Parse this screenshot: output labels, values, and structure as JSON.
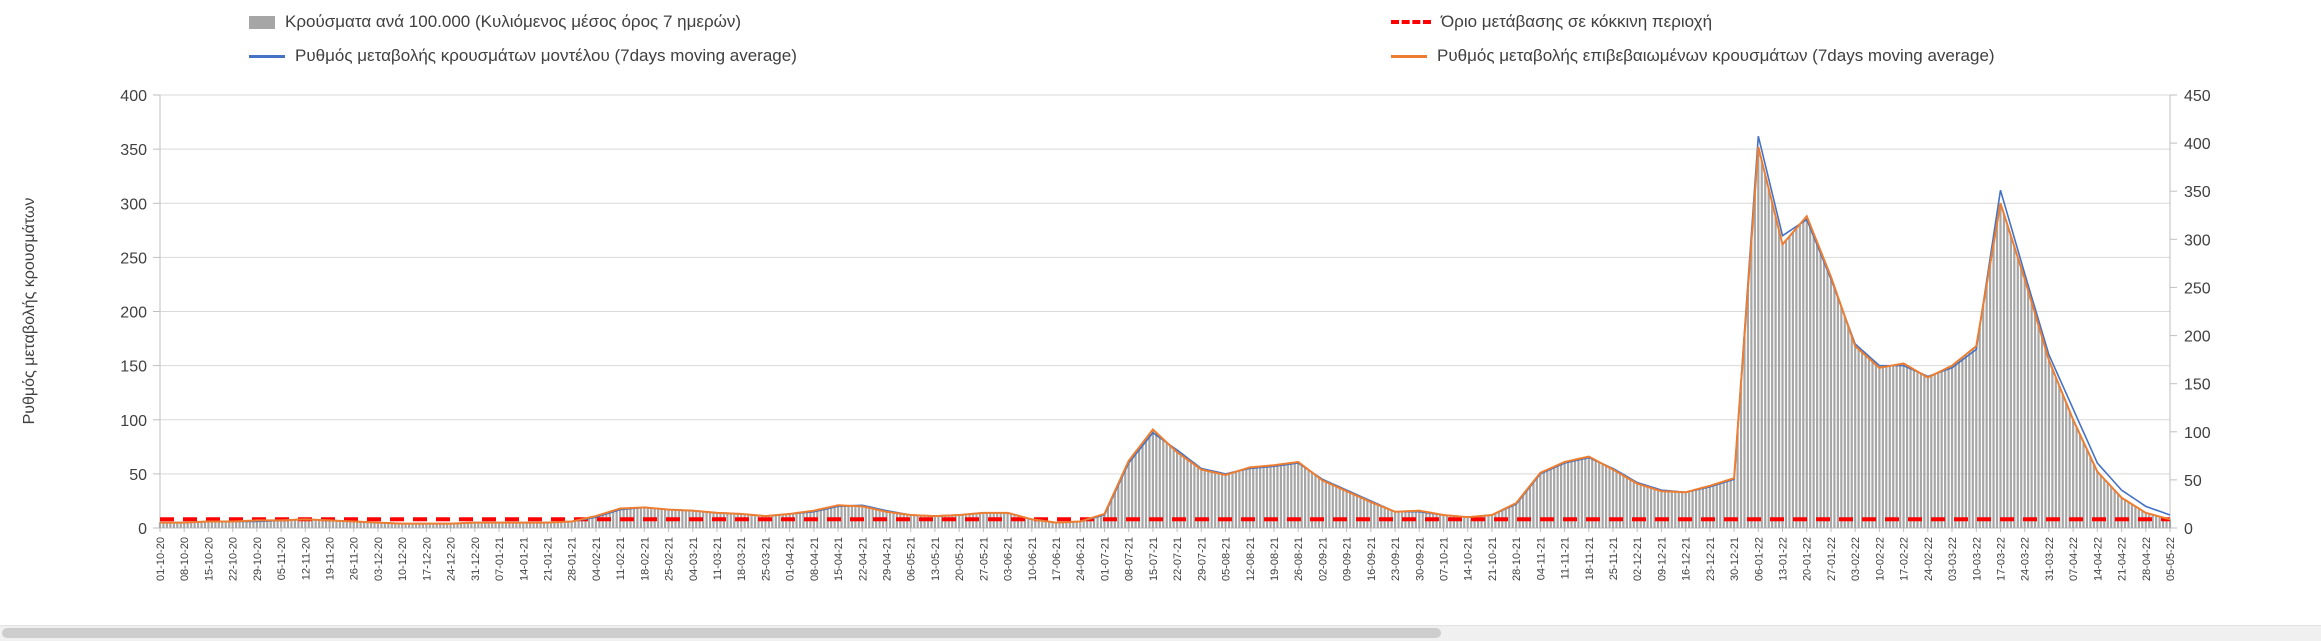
{
  "chart_data": {
    "type": "combo",
    "title": "",
    "x": [
      "01-10-20",
      "08-10-20",
      "15-10-20",
      "22-10-20",
      "29-10-20",
      "05-11-20",
      "12-11-20",
      "19-11-20",
      "26-11-20",
      "03-12-20",
      "10-12-20",
      "17-12-20",
      "24-12-20",
      "31-12-20",
      "07-01-21",
      "14-01-21",
      "21-01-21",
      "28-01-21",
      "04-02-21",
      "11-02-21",
      "18-02-21",
      "25-02-21",
      "04-03-21",
      "11-03-21",
      "18-03-21",
      "25-03-21",
      "01-04-21",
      "08-04-21",
      "15-04-21",
      "22-04-21",
      "29-04-21",
      "06-05-21",
      "13-05-21",
      "20-05-21",
      "27-05-21",
      "03-06-21",
      "10-06-21",
      "17-06-21",
      "24-06-21",
      "01-07-21",
      "08-07-21",
      "15-07-21",
      "22-07-21",
      "29-07-21",
      "05-08-21",
      "12-08-21",
      "19-08-21",
      "26-08-21",
      "02-09-21",
      "09-09-21",
      "16-09-21",
      "23-09-21",
      "30-09-21",
      "07-10-21",
      "14-10-21",
      "21-10-21",
      "28-10-21",
      "04-11-21",
      "11-11-21",
      "18-11-21",
      "25-11-21",
      "02-12-21",
      "09-12-21",
      "16-12-21",
      "23-12-21",
      "30-12-21",
      "06-01-22",
      "13-01-22",
      "20-01-22",
      "27-01-22",
      "03-02-22",
      "10-02-22",
      "17-02-22",
      "24-02-22",
      "03-03-22",
      "10-03-22",
      "17-03-22",
      "24-03-22",
      "31-03-22",
      "07-04-22",
      "14-04-22",
      "21-04-22",
      "28-04-22",
      "05-05-22"
    ],
    "series": [
      {
        "name": "Κρούσματα ανά 100.000 (Κυλιόμενος μέσος όρος 7 ημερών)",
        "type": "bar",
        "axis": "right",
        "color": "#a6a6a6",
        "values": [
          6,
          6,
          7,
          7,
          8,
          8,
          9,
          8,
          7,
          6,
          5,
          5,
          5,
          6,
          6,
          6,
          6,
          7,
          12,
          20,
          21,
          19,
          18,
          16,
          15,
          12,
          15,
          18,
          24,
          23,
          17,
          14,
          12,
          14,
          16,
          16,
          9,
          6,
          7,
          15,
          70,
          102,
          79,
          61,
          55,
          63,
          65,
          69,
          50,
          38,
          27,
          17,
          18,
          14,
          11,
          14,
          26,
          57,
          69,
          74,
          61,
          46,
          38,
          37,
          44,
          52,
          396,
          295,
          324,
          261,
          189,
          167,
          171,
          156,
          169,
          189,
          338,
          259,
          174,
          113,
          59,
          32,
          16,
          9
        ]
      },
      {
        "name": "Όριο μετάβασης σε κόκκινη περιοχή",
        "type": "threshold",
        "axis": "left",
        "color": "#ff0000",
        "value": 8
      },
      {
        "name": "Ρυθμός μεταβολής κρουσμάτων μοντέλου (7days moving average)",
        "type": "line",
        "axis": "left",
        "color": "#4472c4",
        "values": [
          5,
          5,
          6,
          6,
          6,
          7,
          8,
          7,
          6,
          5,
          4,
          4,
          4,
          5,
          5,
          5,
          5,
          6,
          10,
          17,
          19,
          17,
          16,
          14,
          13,
          11,
          13,
          15,
          20,
          21,
          16,
          12,
          11,
          12,
          14,
          14,
          8,
          5,
          6,
          12,
          60,
          88,
          72,
          55,
          50,
          55,
          57,
          60,
          45,
          35,
          25,
          15,
          15,
          12,
          10,
          12,
          22,
          50,
          60,
          65,
          55,
          42,
          35,
          33,
          38,
          45,
          362,
          270,
          285,
          230,
          170,
          150,
          150,
          140,
          148,
          165,
          312,
          235,
          160,
          110,
          60,
          35,
          20,
          12
        ]
      },
      {
        "name": "Ρυθμός μεταβολής επιβεβαιωμένων κρουσμάτων (7days moving average)",
        "type": "line",
        "axis": "left",
        "color": "#ed7d31",
        "values": [
          5,
          5,
          6,
          6,
          7,
          7,
          8,
          7,
          6,
          5,
          4,
          4,
          4,
          5,
          5,
          5,
          5,
          6,
          11,
          18,
          19,
          17,
          16,
          14,
          13,
          11,
          13,
          16,
          21,
          20,
          15,
          12,
          11,
          12,
          14,
          14,
          8,
          5,
          6,
          13,
          62,
          91,
          70,
          54,
          49,
          56,
          58,
          61,
          44,
          34,
          24,
          15,
          16,
          12,
          10,
          12,
          23,
          51,
          61,
          66,
          54,
          41,
          34,
          33,
          39,
          46,
          352,
          262,
          288,
          232,
          168,
          148,
          152,
          139,
          150,
          168,
          300,
          230,
          155,
          100,
          52,
          28,
          14,
          8
        ]
      }
    ],
    "left_axis": {
      "title": "Ρυθμός μεταβολής κρουσμάτων",
      "min": 0,
      "max": 400,
      "step": 50
    },
    "right_axis": {
      "min": 0,
      "max": 450,
      "step": 50
    },
    "grid": true,
    "legend_position": "top",
    "grid_color": "#d9d9d9",
    "axis_color": "#bfbfbf",
    "text_color": "#404040"
  }
}
